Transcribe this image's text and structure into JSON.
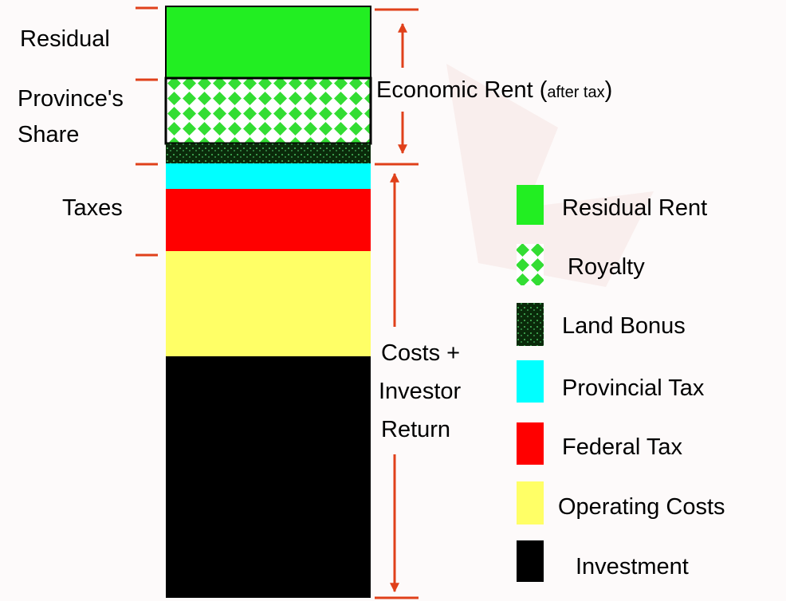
{
  "left_labels": {
    "residual": "Residual",
    "province_share": [
      "Province's",
      "Share"
    ],
    "taxes": "Taxes"
  },
  "right_labels": {
    "economic_rent": {
      "main": "Economic Rent (",
      "small": "after tax",
      "close": ")"
    },
    "costs": [
      "Costs +",
      "Investor",
      "Return"
    ]
  },
  "legend": [
    "Residual Rent",
    "Royalty",
    "Land Bonus",
    "Provincial Tax",
    "Federal Tax",
    "Operating Costs",
    "Investment"
  ]
}
